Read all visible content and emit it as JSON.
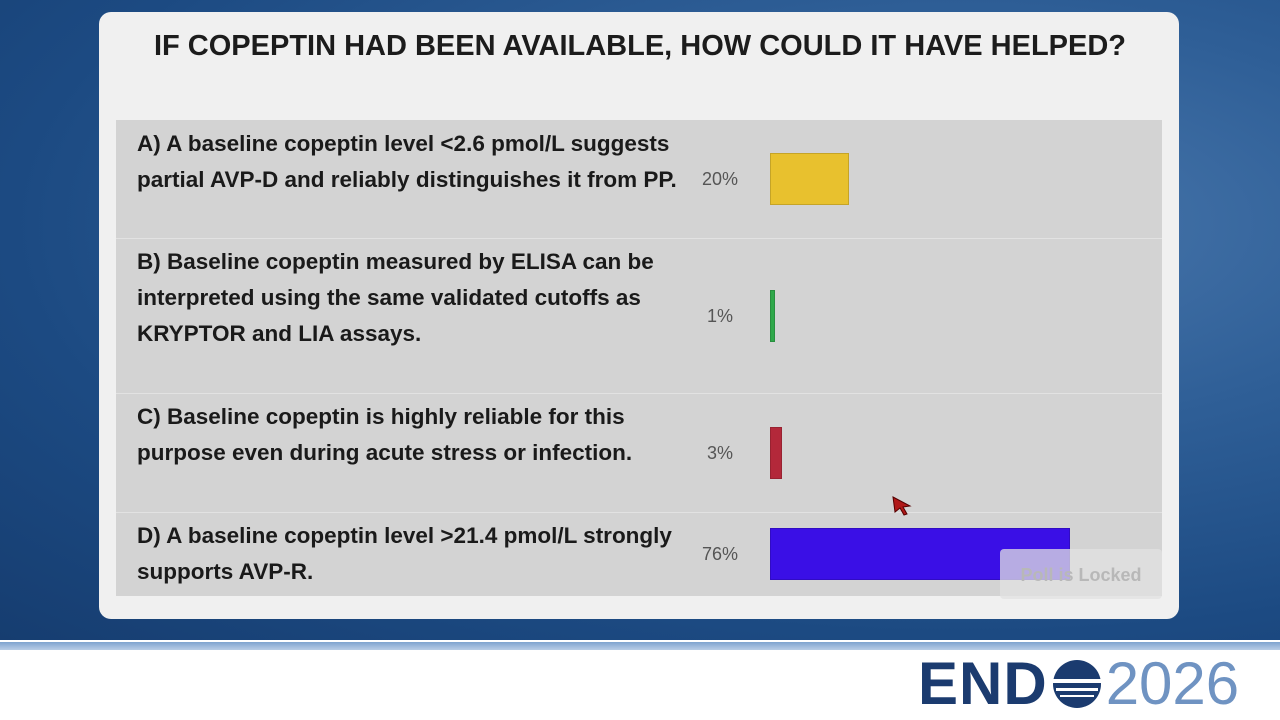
{
  "chart_data": {
    "type": "bar",
    "orientation": "horizontal",
    "title": "IF COPEPTIN HAD BEEN AVAILABLE, HOW COULD IT HAVE HELPED?",
    "categories": [
      "A) A baseline copeptin level <2.6 pmol/L suggests partial AVP-D and reliably distinguishes it from PP.",
      "B) Baseline copeptin measured by ELISA can be interpreted using the same validated cutoffs as KRYPTOR and LIA assays.",
      "C) Baseline copeptin is highly reliable for this purpose even during acute stress or infection.",
      "D) A baseline copeptin level >21.4 pmol/L strongly supports AVP-R."
    ],
    "values": [
      20,
      1,
      3,
      76
    ],
    "value_labels": [
      "20%",
      "1%",
      "3%",
      "76%"
    ],
    "colors": [
      "#e8c12e",
      "#2fa84a",
      "#b3283a",
      "#3a0fe6"
    ],
    "status": "Poll is Locked"
  },
  "logo": {
    "left": "END",
    "right": "2026"
  }
}
